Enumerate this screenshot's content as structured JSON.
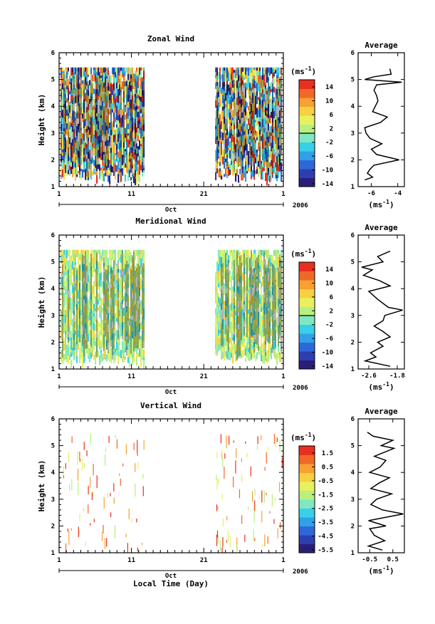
{
  "figure": {
    "xlabel": "Local Time (Day)",
    "month": "Oct",
    "year": "2006",
    "x_ticks": [
      "1",
      "11",
      "21",
      "1"
    ],
    "unit_label": "(ms",
    "unit_sup": "-1",
    "unit_close": ")",
    "avg_title": "Average"
  },
  "colors": {
    "palette": [
      "#2a1f78",
      "#2d3fb0",
      "#2e68d8",
      "#30a0e8",
      "#38d0e8",
      "#7ee8c0",
      "#b8f080",
      "#e8f060",
      "#f8d040",
      "#f8a030",
      "#f06828",
      "#e83020"
    ]
  },
  "chart_data": [
    {
      "type": "heatmap",
      "title": "Zonal Wind",
      "ylabel": "Height (km)",
      "ylim": [
        1,
        6
      ],
      "y_ticks": [
        "1",
        "2",
        "3",
        "4",
        "5",
        "6"
      ],
      "x_range": [
        "1 Oct",
        "1 Nov"
      ],
      "data_gap": [
        "13 Oct",
        "23 Oct"
      ],
      "colorbar": {
        "range": [
          -16,
          16
        ],
        "labels": [
          "14",
          "10",
          "6",
          "2",
          "-2",
          "-6",
          "-10",
          "-14"
        ]
      },
      "average": {
        "title": "Average",
        "xlim": [
          -7,
          -3.5
        ],
        "x_ticks": [
          "-6",
          "-4"
        ],
        "heights": [
          1.25,
          1.35,
          1.5,
          1.65,
          1.8,
          2.0,
          2.2,
          2.4,
          2.6,
          2.8,
          3.0,
          3.2,
          3.4,
          3.6,
          3.8,
          4.0,
          4.2,
          4.4,
          4.6,
          4.8,
          4.9,
          5.0,
          5.1,
          5.2,
          5.4
        ],
        "values": [
          -6.5,
          -5.9,
          -6.3,
          -6.1,
          -5.8,
          -3.9,
          -5.6,
          -6.0,
          -5.2,
          -6.1,
          -6.4,
          -6.5,
          -5.3,
          -4.8,
          -5.9,
          -5.7,
          -5.5,
          -5.6,
          -5.8,
          -5.6,
          -3.7,
          -6.5,
          -5.8,
          -4.5,
          -4.6
        ]
      }
    },
    {
      "type": "heatmap",
      "title": "Meridional Wind",
      "ylabel": "Height (km)",
      "ylim": [
        1,
        6
      ],
      "y_ticks": [
        "1",
        "2",
        "3",
        "4",
        "5",
        "6"
      ],
      "x_range": [
        "1 Oct",
        "1 Nov"
      ],
      "data_gap": [
        "13 Oct",
        "23 Oct"
      ],
      "colorbar": {
        "range": [
          -16,
          16
        ],
        "labels": [
          "14",
          "10",
          "6",
          "2",
          "-2",
          "-6",
          "-10",
          "-14"
        ]
      },
      "average": {
        "title": "Average",
        "xlim": [
          -2.9,
          -1.6
        ],
        "x_ticks": [
          "-2.6",
          "-1.8"
        ],
        "heights": [
          1.1,
          1.3,
          1.45,
          1.6,
          1.85,
          2.0,
          2.2,
          2.4,
          2.6,
          2.8,
          3.0,
          3.2,
          3.3,
          3.6,
          3.9,
          4.1,
          4.3,
          4.5,
          4.7,
          4.8,
          5.0,
          5.2,
          5.4
        ],
        "values": [
          -2.0,
          -2.7,
          -2.4,
          -2.55,
          -2.2,
          -2.35,
          -2.0,
          -2.2,
          -2.45,
          -2.2,
          -2.15,
          -1.65,
          -2.05,
          -2.35,
          -2.6,
          -2.0,
          -2.3,
          -2.75,
          -2.5,
          -2.8,
          -2.2,
          -2.35,
          -2.0
        ]
      }
    },
    {
      "type": "heatmap",
      "title": "Vertical Wind",
      "ylabel": "Height (km)",
      "ylim": [
        1,
        6
      ],
      "y_ticks": [
        "1",
        "2",
        "3",
        "4",
        "5",
        "6"
      ],
      "x_range": [
        "1 Oct",
        "1 Nov"
      ],
      "data_gap": [
        "13 Oct",
        "23 Oct"
      ],
      "colorbar": {
        "range": [
          -6.5,
          2.5
        ],
        "labels": [
          "1.5",
          "0.5",
          "-0.5",
          "-1.5",
          "-2.5",
          "-3.5",
          "-4.5",
          "-5.5"
        ]
      },
      "average": {
        "title": "Average",
        "xlim": [
          -1.0,
          1.0
        ],
        "x_ticks": [
          "-0.5",
          "0.5"
        ],
        "heights": [
          1.1,
          1.25,
          1.45,
          1.65,
          1.9,
          2.0,
          2.2,
          2.45,
          2.6,
          2.8,
          3.0,
          3.2,
          3.4,
          3.6,
          3.8,
          4.0,
          4.2,
          4.45,
          4.6,
          4.9,
          5.0,
          5.2,
          5.35,
          5.5
        ],
        "values": [
          0.05,
          -0.55,
          0.15,
          -0.3,
          -0.5,
          0.2,
          -0.55,
          0.95,
          0.05,
          -0.45,
          -0.2,
          0.45,
          -0.45,
          -0.1,
          0.35,
          -0.5,
          -0.05,
          0.2,
          -0.3,
          0.55,
          0.0,
          0.5,
          -0.35,
          -0.6
        ]
      }
    }
  ]
}
